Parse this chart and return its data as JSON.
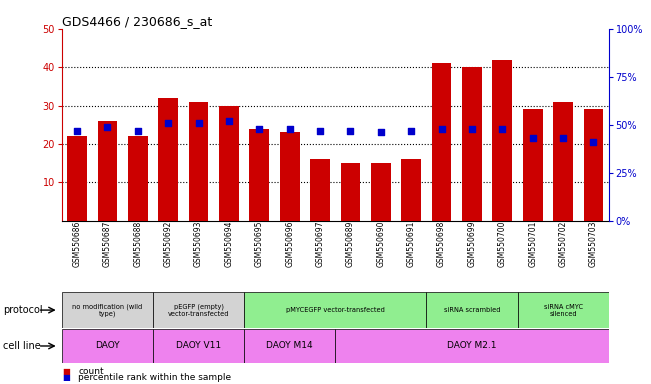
{
  "title": "GDS4466 / 230686_s_at",
  "samples": [
    "GSM550686",
    "GSM550687",
    "GSM550688",
    "GSM550692",
    "GSM550693",
    "GSM550694",
    "GSM550695",
    "GSM550696",
    "GSM550697",
    "GSM550689",
    "GSM550690",
    "GSM550691",
    "GSM550698",
    "GSM550699",
    "GSM550700",
    "GSM550701",
    "GSM550702",
    "GSM550703"
  ],
  "counts": [
    22,
    26,
    22,
    32,
    31,
    30,
    24,
    23,
    16,
    15,
    15,
    16,
    41,
    40,
    42,
    29,
    31,
    29
  ],
  "percentiles": [
    47,
    49,
    47,
    51,
    51,
    52,
    48,
    48,
    47,
    47,
    46,
    47,
    48,
    48,
    48,
    43,
    43,
    41
  ],
  "ylim_left": [
    0,
    50
  ],
  "ylim_right": [
    0,
    100
  ],
  "yticks_left": [
    10,
    20,
    30,
    40,
    50
  ],
  "yticks_right": [
    0,
    25,
    50,
    75,
    100
  ],
  "bar_color": "#cc0000",
  "dot_color": "#0000cc",
  "protocol_groups": [
    {
      "label": "no modification (wild\ntype)",
      "start": 0,
      "end": 3,
      "color": "#d3d3d3"
    },
    {
      "label": "pEGFP (empty)\nvector-transfected",
      "start": 3,
      "end": 6,
      "color": "#d3d3d3"
    },
    {
      "label": "pMYCEGFP vector-transfected",
      "start": 6,
      "end": 12,
      "color": "#90ee90"
    },
    {
      "label": "siRNA scrambled",
      "start": 12,
      "end": 15,
      "color": "#90ee90"
    },
    {
      "label": "siRNA cMYC\nsilenced",
      "start": 15,
      "end": 18,
      "color": "#90ee90"
    }
  ],
  "cellline_groups": [
    {
      "label": "DAOY",
      "start": 0,
      "end": 3,
      "color": "#ee82ee"
    },
    {
      "label": "DAOY V11",
      "start": 3,
      "end": 6,
      "color": "#ee82ee"
    },
    {
      "label": "DAOY M14",
      "start": 6,
      "end": 9,
      "color": "#ee82ee"
    },
    {
      "label": "DAOY M2.1",
      "start": 9,
      "end": 18,
      "color": "#ee82ee"
    }
  ],
  "protocol_label": "protocol",
  "cellline_label": "cell line",
  "legend_count": "count",
  "legend_percentile": "percentile rank within the sample",
  "axis_color_left": "#cc0000",
  "axis_color_right": "#0000cc"
}
